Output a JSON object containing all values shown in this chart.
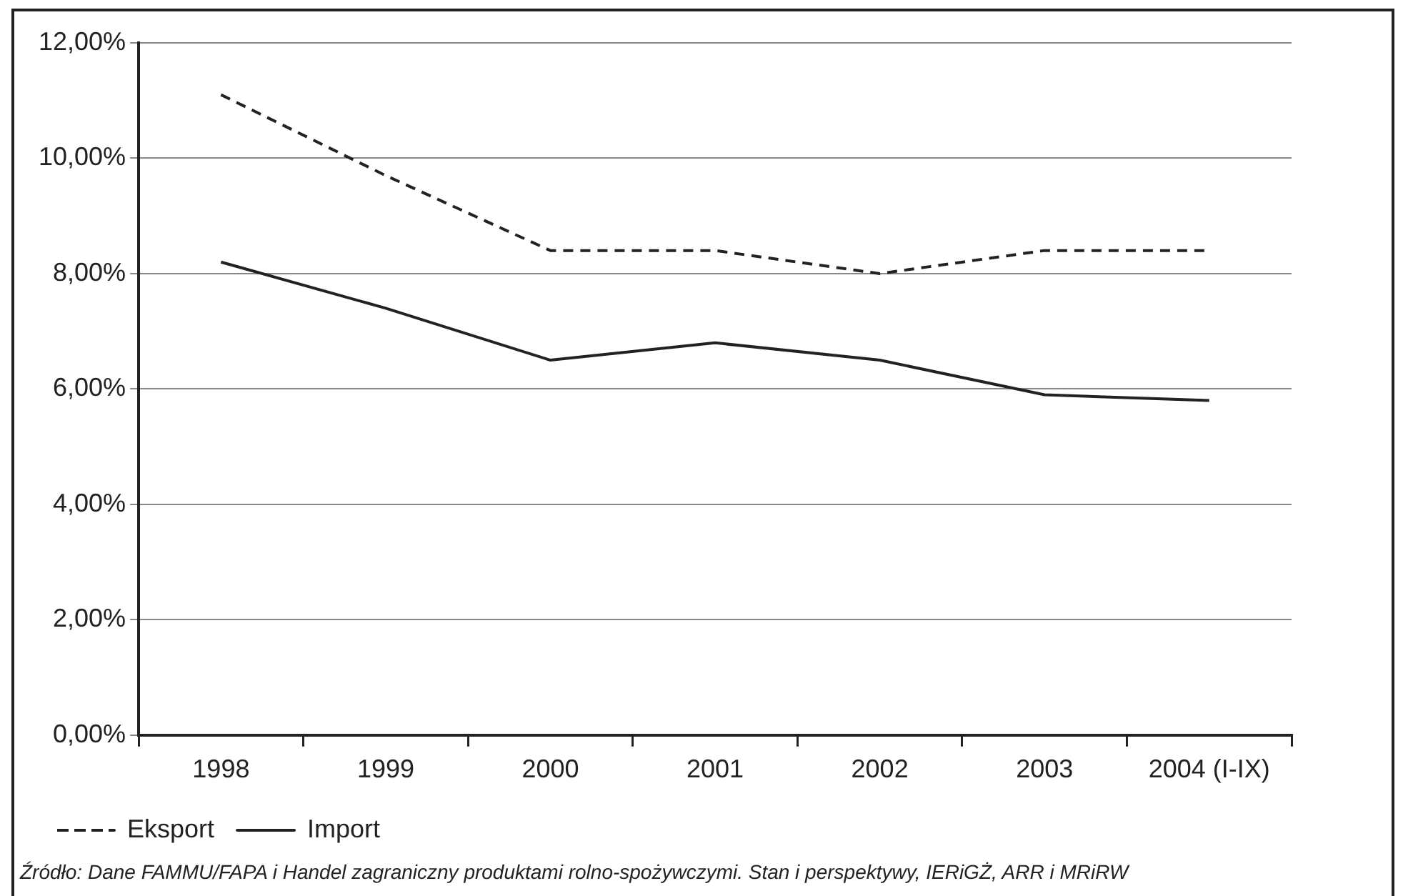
{
  "chart_data": {
    "type": "line",
    "categories": [
      "1998",
      "1999",
      "2000",
      "2001",
      "2002",
      "2003",
      "2004 (I-IX)"
    ],
    "series": [
      {
        "name": "Eksport",
        "color": "#222222",
        "line_style": "dashed",
        "values": [
          11.1,
          9.7,
          8.4,
          8.4,
          8.0,
          8.4,
          8.4
        ]
      },
      {
        "name": "Import",
        "color": "#222222",
        "line_style": "solid",
        "values": [
          8.2,
          7.4,
          6.5,
          6.8,
          6.5,
          5.9,
          5.8
        ]
      }
    ],
    "ylim": [
      0,
      12
    ],
    "yticks": [
      {
        "value": 0,
        "label": "0,00%"
      },
      {
        "value": 2,
        "label": "2,00%"
      },
      {
        "value": 4,
        "label": "4,00%"
      },
      {
        "value": 6,
        "label": "6,00%"
      },
      {
        "value": 8,
        "label": "8,00%"
      },
      {
        "value": 10,
        "label": "10,00%"
      },
      {
        "value": 12,
        "label": "12,00%"
      }
    ],
    "grid": "y",
    "legend": "bottom left",
    "marker": "none",
    "annotations": [
      "Źródło: Dane FAMMU/FAPA i Handel zagraniczny produktami rolno-spożywczymi. Stan i perspektywy, IERiGŻ, ARR i MRiRW"
    ]
  }
}
